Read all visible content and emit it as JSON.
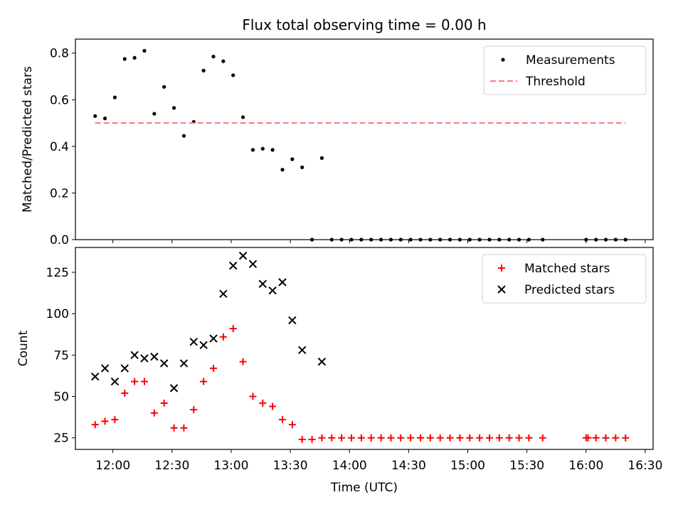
{
  "chart_data": [
    {
      "type": "scatter",
      "title": "Flux total observing time = 0.00 h",
      "xlabel": "",
      "ylabel": "Matched/Predicted stars",
      "ylim": [
        0,
        0.86
      ],
      "yticks": [
        0.0,
        0.2,
        0.4,
        0.6,
        0.8
      ],
      "ytick_labels": [
        "0.0",
        "0.2",
        "0.4",
        "0.6",
        "0.8"
      ],
      "legend_position": "top-right",
      "grid": false,
      "series": [
        {
          "name": "Measurements",
          "marker": "dot",
          "color": "#000000",
          "points": [
            [
              "11:51",
              0.53
            ],
            [
              "11:56",
              0.52
            ],
            [
              "12:01",
              0.61
            ],
            [
              "12:06",
              0.775
            ],
            [
              "12:11",
              0.78
            ],
            [
              "12:16",
              0.81
            ],
            [
              "12:21",
              0.54
            ],
            [
              "12:26",
              0.655
            ],
            [
              "12:31",
              0.565
            ],
            [
              "12:36",
              0.445
            ],
            [
              "12:41",
              0.505
            ],
            [
              "12:46",
              0.725
            ],
            [
              "12:51",
              0.785
            ],
            [
              "12:56",
              0.765
            ],
            [
              "13:01",
              0.705
            ],
            [
              "13:06",
              0.525
            ],
            [
              "13:11",
              0.385
            ],
            [
              "13:16",
              0.39
            ],
            [
              "13:21",
              0.385
            ],
            [
              "13:26",
              0.3
            ],
            [
              "13:31",
              0.345
            ],
            [
              "13:36",
              0.31
            ],
            [
              "13:41",
              0.0
            ],
            [
              "13:46",
              0.35
            ],
            [
              "13:51",
              0.0
            ],
            [
              "13:56",
              0.0
            ],
            [
              "14:01",
              0.0
            ],
            [
              "14:06",
              0.0
            ],
            [
              "14:11",
              0.0
            ],
            [
              "14:16",
              0.0
            ],
            [
              "14:21",
              0.0
            ],
            [
              "14:26",
              0.0
            ],
            [
              "14:31",
              0.0
            ],
            [
              "14:36",
              0.0
            ],
            [
              "14:41",
              0.0
            ],
            [
              "14:46",
              0.0
            ],
            [
              "14:51",
              0.0
            ],
            [
              "14:56",
              0.0
            ],
            [
              "15:01",
              0.0
            ],
            [
              "15:06",
              0.0
            ],
            [
              "15:11",
              0.0
            ],
            [
              "15:16",
              0.0
            ],
            [
              "15:21",
              0.0
            ],
            [
              "15:26",
              0.0
            ],
            [
              "15:31",
              0.0
            ],
            [
              "15:38",
              0.0
            ],
            [
              "16:00",
              0.0
            ],
            [
              "16:05",
              0.0
            ],
            [
              "16:10",
              0.0
            ],
            [
              "16:15",
              0.0
            ],
            [
              "16:20",
              0.0
            ]
          ]
        },
        {
          "name": "Threshold",
          "type": "line",
          "style": "dashed",
          "color": "#ff7f7f",
          "points": [
            [
              "11:51",
              0.5
            ],
            [
              "16:20",
              0.5
            ]
          ]
        }
      ]
    },
    {
      "type": "scatter",
      "title": "",
      "xlabel": "Time (UTC)",
      "ylabel": "Count",
      "ylim": [
        18,
        140
      ],
      "yticks": [
        25,
        50,
        75,
        100,
        125
      ],
      "ytick_labels": [
        "25",
        "50",
        "75",
        "100",
        "125"
      ],
      "xlim": [
        "11:41",
        "16:34"
      ],
      "xticks": [
        "12:00",
        "12:30",
        "13:00",
        "13:30",
        "14:00",
        "14:30",
        "15:00",
        "15:30",
        "16:00",
        "16:30"
      ],
      "xtick_labels": [
        "12:00",
        "12:30",
        "13:00",
        "13:30",
        "14:00",
        "14:30",
        "15:00",
        "15:30",
        "16:00",
        "16:30"
      ],
      "legend_position": "top-right",
      "grid": false,
      "series": [
        {
          "name": "Matched stars",
          "marker": "plus",
          "color": "#ff0000",
          "points": [
            [
              "11:51",
              33
            ],
            [
              "11:56",
              35
            ],
            [
              "12:01",
              36
            ],
            [
              "12:06",
              52
            ],
            [
              "12:11",
              59
            ],
            [
              "12:16",
              59
            ],
            [
              "12:21",
              40
            ],
            [
              "12:26",
              46
            ],
            [
              "12:31",
              31
            ],
            [
              "12:36",
              31
            ],
            [
              "12:41",
              42
            ],
            [
              "12:46",
              59
            ],
            [
              "12:51",
              67
            ],
            [
              "12:56",
              86
            ],
            [
              "13:01",
              91
            ],
            [
              "13:06",
              71
            ],
            [
              "13:11",
              50
            ],
            [
              "13:16",
              46
            ],
            [
              "13:21",
              44
            ],
            [
              "13:26",
              36
            ],
            [
              "13:31",
              33
            ],
            [
              "13:36",
              24
            ],
            [
              "13:41",
              24
            ],
            [
              "13:46",
              25
            ],
            [
              "13:51",
              25
            ],
            [
              "13:56",
              25
            ],
            [
              "14:01",
              25
            ],
            [
              "14:06",
              25
            ],
            [
              "14:11",
              25
            ],
            [
              "14:16",
              25
            ],
            [
              "14:21",
              25
            ],
            [
              "14:26",
              25
            ],
            [
              "14:31",
              25
            ],
            [
              "14:36",
              25
            ],
            [
              "14:41",
              25
            ],
            [
              "14:46",
              25
            ],
            [
              "14:51",
              25
            ],
            [
              "14:56",
              25
            ],
            [
              "15:01",
              25
            ],
            [
              "15:06",
              25
            ],
            [
              "15:11",
              25
            ],
            [
              "15:16",
              25
            ],
            [
              "15:21",
              25
            ],
            [
              "15:26",
              25
            ],
            [
              "15:31",
              25
            ],
            [
              "15:38",
              25
            ],
            [
              "16:00",
              25
            ],
            [
              "16:01",
              25
            ],
            [
              "16:05",
              25
            ],
            [
              "16:10",
              25
            ],
            [
              "16:15",
              25
            ],
            [
              "16:20",
              25
            ]
          ]
        },
        {
          "name": "Predicted stars",
          "marker": "x",
          "color": "#000000",
          "points": [
            [
              "11:51",
              62
            ],
            [
              "11:56",
              67
            ],
            [
              "12:01",
              59
            ],
            [
              "12:06",
              67
            ],
            [
              "12:11",
              75
            ],
            [
              "12:16",
              73
            ],
            [
              "12:21",
              74
            ],
            [
              "12:26",
              70
            ],
            [
              "12:31",
              55
            ],
            [
              "12:36",
              70
            ],
            [
              "12:41",
              83
            ],
            [
              "12:46",
              81
            ],
            [
              "12:51",
              85
            ],
            [
              "12:56",
              112
            ],
            [
              "13:01",
              129
            ],
            [
              "13:06",
              135
            ],
            [
              "13:11",
              130
            ],
            [
              "13:16",
              118
            ],
            [
              "13:21",
              114
            ],
            [
              "13:26",
              119
            ],
            [
              "13:31",
              96
            ],
            [
              "13:36",
              78
            ],
            [
              "13:46",
              71
            ]
          ]
        }
      ]
    }
  ]
}
